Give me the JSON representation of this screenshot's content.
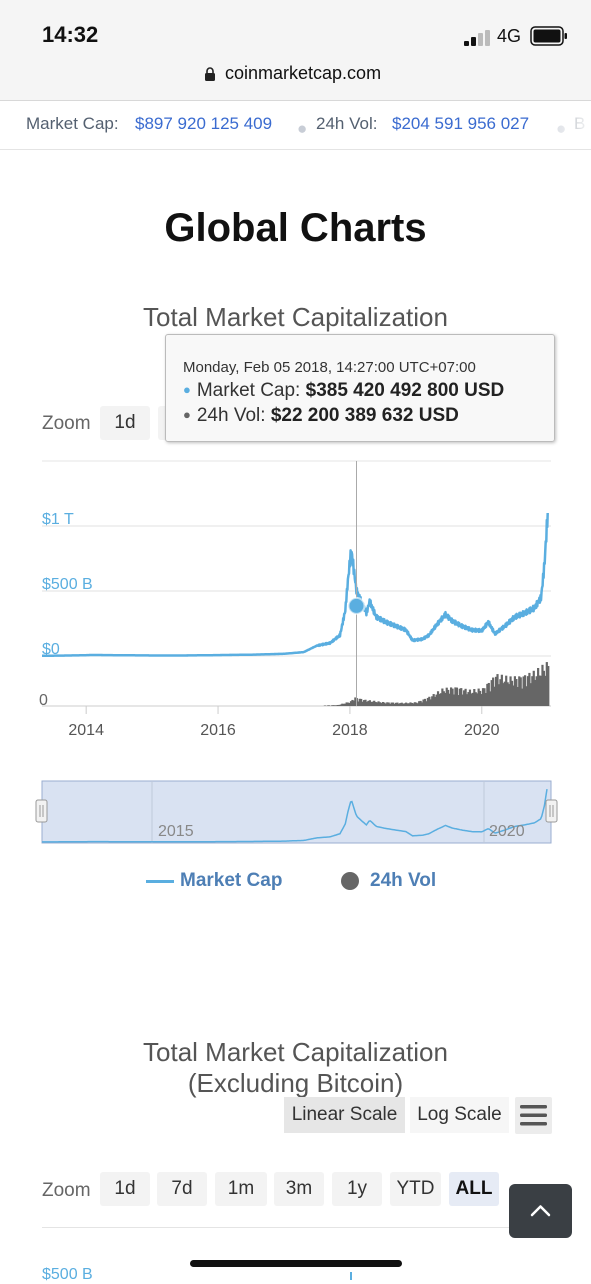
{
  "status_bar": {
    "time": "14:32",
    "network": "4G",
    "url": "coinmarketcap.com"
  },
  "ticker": {
    "market_cap_label": "Market Cap:",
    "market_cap_value": "$897 920 125 409",
    "volume_label": "24h Vol:",
    "volume_value": "$204 591 956 027",
    "next_label": "B"
  },
  "page_title": "Global Charts",
  "chart1": {
    "title": "Total Market Capitalization",
    "zoom_label": "Zoom",
    "zoom_first": "1d",
    "tooltip": {
      "date": "Monday, Feb 05 2018, 14:27:00 UTC+07:00",
      "market_cap_label": "Market Cap:",
      "market_cap_value": "$385 420 492 800 USD",
      "volume_label": "24h Vol:",
      "volume_value": "$22 200 389 632 USD"
    },
    "navigator_labels": [
      "2015",
      "2020"
    ],
    "legend": {
      "market_cap": "Market Cap",
      "volume": "24h Vol"
    }
  },
  "chart2": {
    "title_line1": "Total Market Capitalization",
    "title_line2": "(Excluding Bitcoin)",
    "linear_scale": "Linear Scale",
    "log_scale": "Log Scale",
    "zoom_label": "Zoom",
    "zoom_options": [
      "1d",
      "7d",
      "1m",
      "3m",
      "1y",
      "YTD",
      "ALL"
    ],
    "zoom_active": "ALL",
    "first_ytick": "$500 B"
  },
  "colors": {
    "market_cap": "#5aaee0",
    "volume": "#666666",
    "accent": "#3a6bd0"
  },
  "chart_data": {
    "type": "line",
    "title": "Total Market Capitalization",
    "xlabel": "",
    "ylabel": "",
    "x_ticks": [
      "2014",
      "2016",
      "2018",
      "2020"
    ],
    "y_ticks": [
      "$0",
      "$500 B",
      "$1 T"
    ],
    "volume_y_ticks": [
      "0"
    ],
    "ylim": [
      0,
      1200
    ],
    "y_unit": "billion USD",
    "series": [
      {
        "name": "Market Cap",
        "type": "line",
        "x": [
          2013.33,
          2013.6,
          2013.9,
          2014.1,
          2014.5,
          2015.0,
          2015.5,
          2016.0,
          2016.5,
          2017.0,
          2017.3,
          2017.5,
          2017.7,
          2017.85,
          2017.93,
          2017.97,
          2018.02,
          2018.1,
          2018.2,
          2018.25,
          2018.3,
          2018.4,
          2018.55,
          2018.7,
          2018.85,
          2018.95,
          2019.1,
          2019.2,
          2019.3,
          2019.45,
          2019.55,
          2019.7,
          2019.85,
          2020.0,
          2020.1,
          2020.2,
          2020.35,
          2020.5,
          2020.65,
          2020.8,
          2020.9,
          2020.95,
          2021.0
        ],
        "values": [
          2,
          3,
          5,
          8,
          6,
          4,
          4,
          7,
          10,
          17,
          30,
          80,
          100,
          160,
          350,
          580,
          820,
          500,
          385,
          330,
          420,
          300,
          260,
          230,
          200,
          120,
          130,
          160,
          230,
          320,
          270,
          230,
          200,
          195,
          260,
          170,
          230,
          300,
          330,
          370,
          450,
          700,
          1100
        ]
      },
      {
        "name": "24h Vol",
        "type": "column",
        "x": [
          2017.5,
          2017.8,
          2018.0,
          2018.05,
          2018.2,
          2018.5,
          2018.8,
          2019.0,
          2019.2,
          2019.4,
          2019.6,
          2019.8,
          2020.0,
          2020.2,
          2020.4,
          2020.6,
          2020.8,
          2021.0
        ],
        "values": [
          1,
          3,
          15,
          28,
          20,
          12,
          10,
          12,
          30,
          55,
          60,
          50,
          55,
          100,
          90,
          95,
          110,
          140
        ]
      }
    ],
    "tooltip_point": {
      "x": "2018-02-05",
      "market_cap": 385.42,
      "volume": 22.2
    },
    "legend": "bottom-center",
    "grid": true
  }
}
